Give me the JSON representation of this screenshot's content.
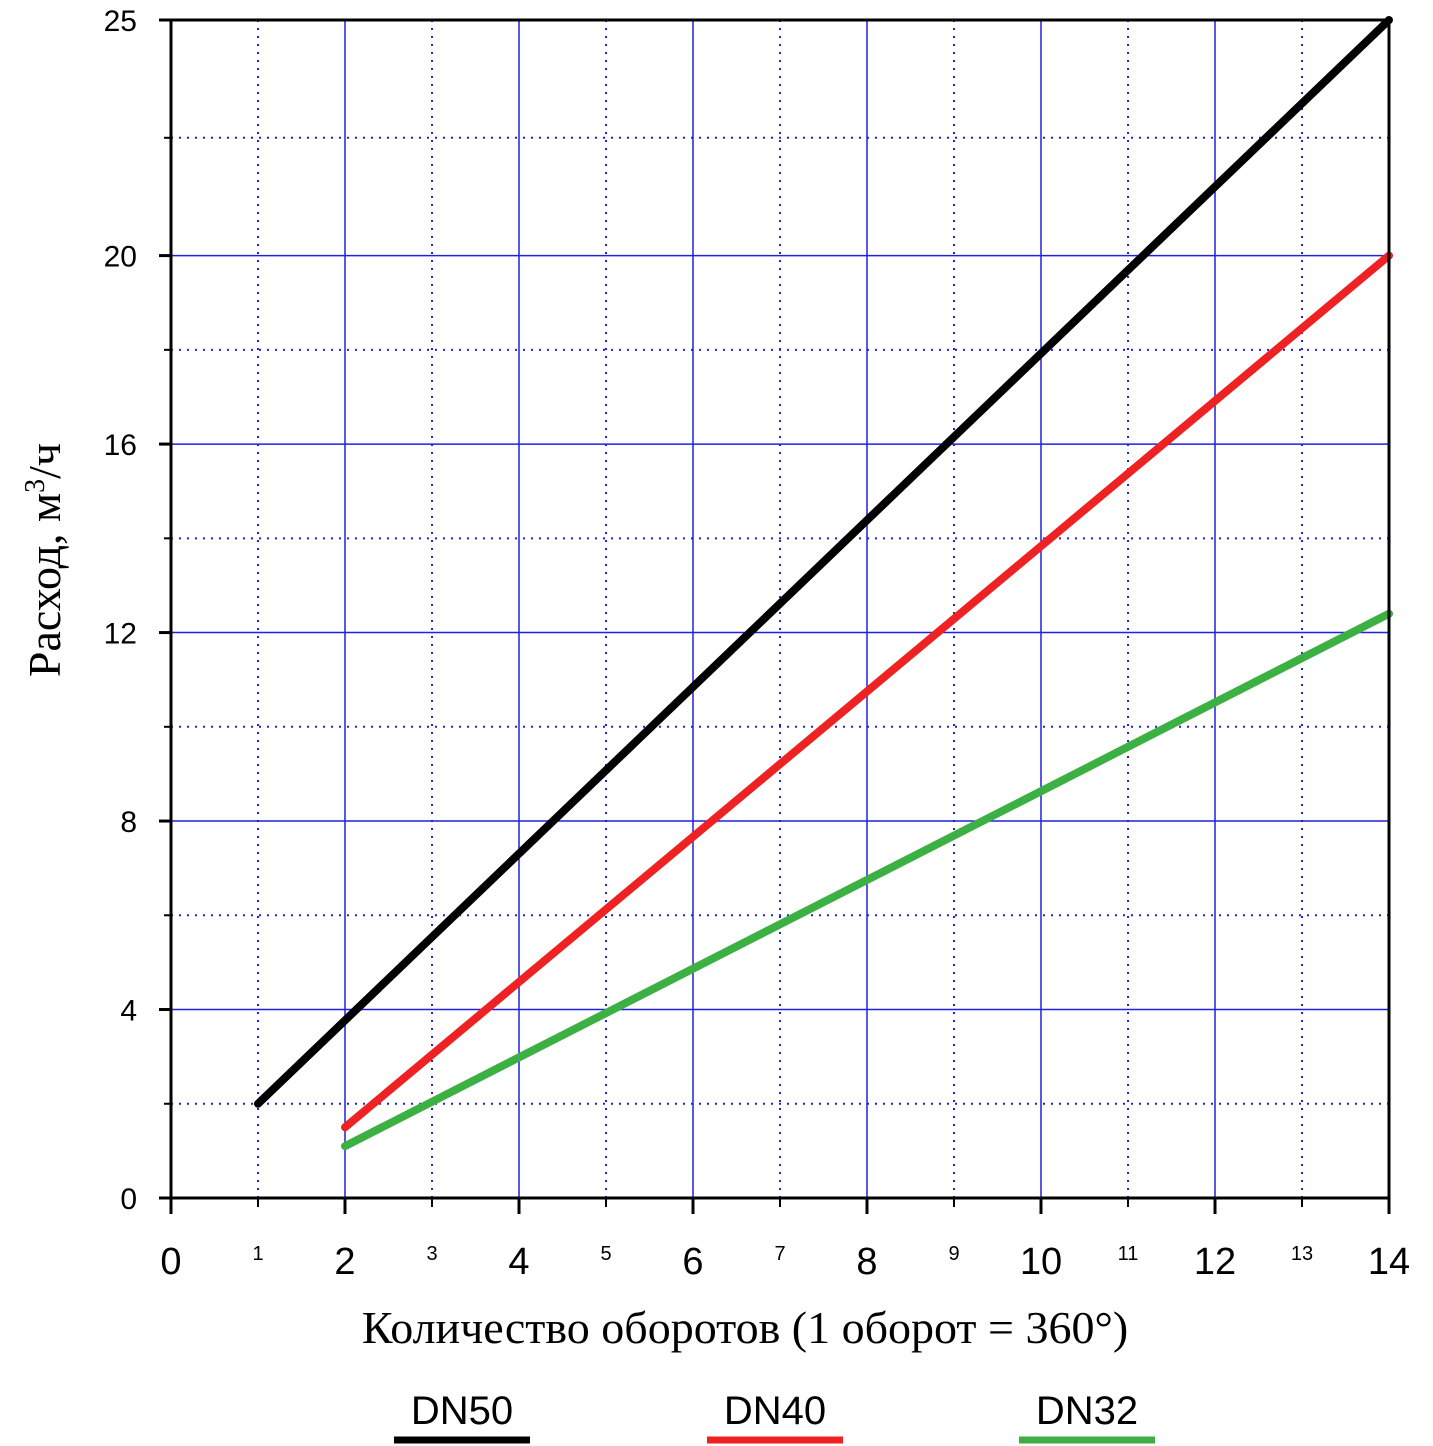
{
  "chart_data": {
    "type": "line",
    "title": "",
    "xlabel": "Количество оборотов (1 оборот = 360°)",
    "ylabel": "Расход, м³/ч",
    "ylabel_parts": {
      "main": "Расход, м",
      "sup": "3",
      "tail": "/ч"
    },
    "xlim": [
      0,
      14
    ],
    "ylim": [
      0,
      25
    ],
    "x_ticks_major": [
      "0",
      "2",
      "4",
      "6",
      "8",
      "10",
      "12",
      "14"
    ],
    "x_ticks_minor": [
      "1",
      "3",
      "5",
      "7",
      "9",
      "11",
      "13"
    ],
    "y_ticks": [
      "0",
      "4",
      "8",
      "12",
      "16",
      "20",
      "25"
    ],
    "grid": true,
    "legend_position": "bottom",
    "series": [
      {
        "name": "DN50",
        "color": "#000000",
        "x": [
          1,
          14
        ],
        "y": [
          2.0,
          25.0
        ]
      },
      {
        "name": "DN40",
        "color": "#ee2222",
        "x": [
          2,
          14
        ],
        "y": [
          1.5,
          20.0
        ]
      },
      {
        "name": "DN32",
        "color": "#3cb043",
        "x": [
          2,
          14
        ],
        "y": [
          1.1,
          12.4
        ]
      }
    ]
  },
  "colors": {
    "grid_major": "#2020e0",
    "grid_minor": "#2020e0",
    "axes": "#000000"
  }
}
